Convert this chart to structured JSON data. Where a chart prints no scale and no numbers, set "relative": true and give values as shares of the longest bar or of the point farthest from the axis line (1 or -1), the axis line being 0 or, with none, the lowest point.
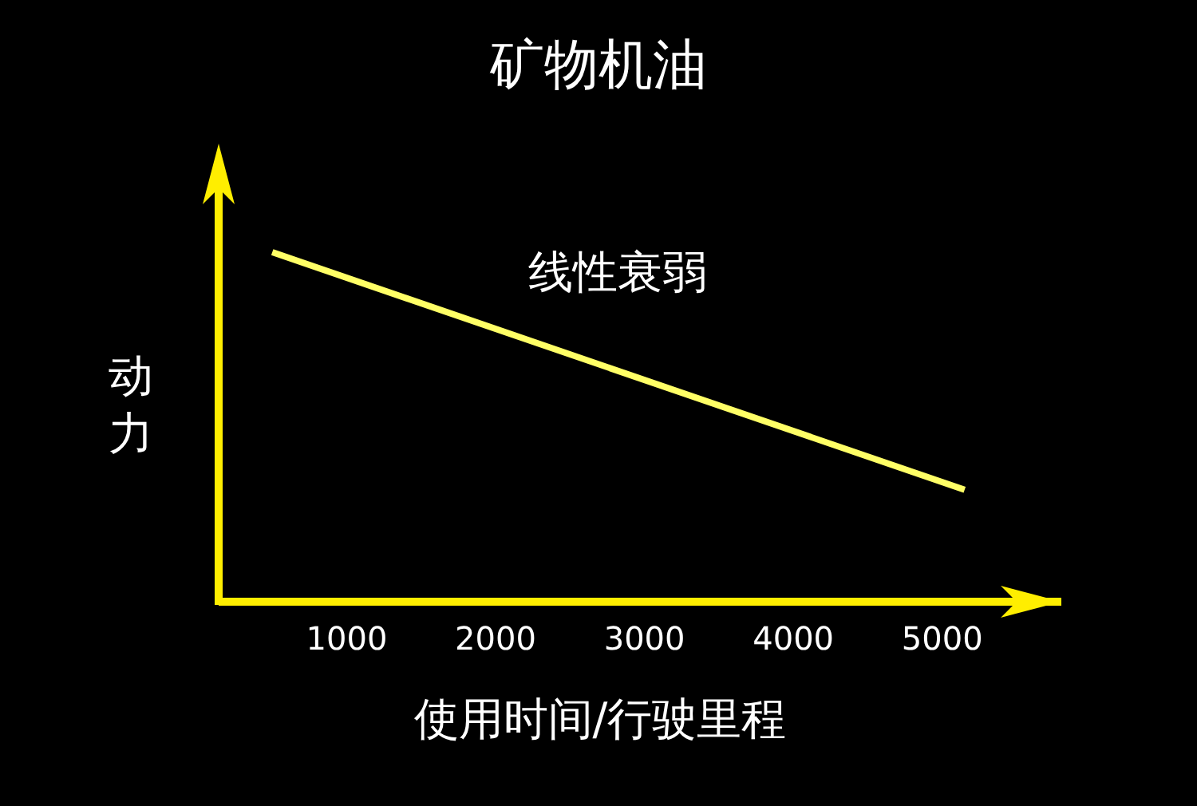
{
  "chart_data": {
    "type": "line",
    "title": "矿物机油",
    "xlabel": "使用时间/行驶里程",
    "ylabel": "动力",
    "relative": true,
    "x": [
      500,
      5150
    ],
    "series": [
      {
        "color": "#ffff66",
        "values": [
          1,
          0.32
        ]
      }
    ],
    "xlim": [
      140,
      5800
    ],
    "xticks": [
      1000,
      2000,
      3000,
      4000,
      5000
    ],
    "tick_labels": "x",
    "annotations": [
      "线性衰弱"
    ]
  }
}
